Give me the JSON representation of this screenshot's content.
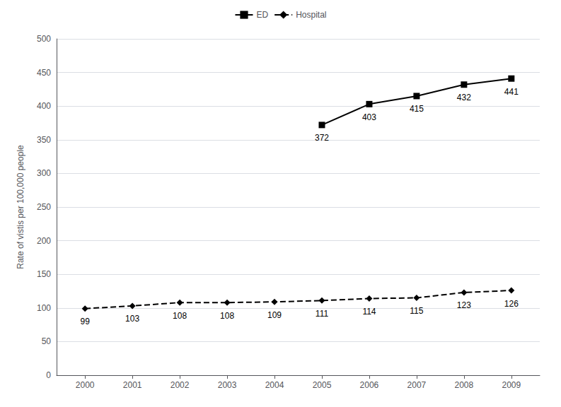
{
  "chart_data": {
    "type": "line",
    "x": [
      2000,
      2001,
      2002,
      2003,
      2004,
      2005,
      2006,
      2007,
      2008,
      2009
    ],
    "series": [
      {
        "name": "ED",
        "color": "#000000",
        "marker": "square",
        "line_style": "solid",
        "values": [
          null,
          null,
          null,
          null,
          null,
          372,
          403,
          415,
          432,
          441
        ]
      },
      {
        "name": "Hospital",
        "color": "#000000",
        "marker": "diamond",
        "line_style": "dashed",
        "values": [
          99,
          103,
          108,
          108,
          109,
          111,
          114,
          115,
          123,
          126
        ]
      }
    ],
    "ylabel": "Rate of vistis per 100,000 people",
    "xlim": [
      1999.4,
      2009.6
    ],
    "xticks": [
      2000,
      2001,
      2002,
      2003,
      2004,
      2005,
      2006,
      2007,
      2008,
      2009
    ],
    "ylim": [
      0,
      500
    ],
    "yticks": [
      0,
      50,
      100,
      150,
      200,
      250,
      300,
      350,
      400,
      450,
      500
    ],
    "grid": true,
    "legend": "top",
    "data_labels": true
  }
}
